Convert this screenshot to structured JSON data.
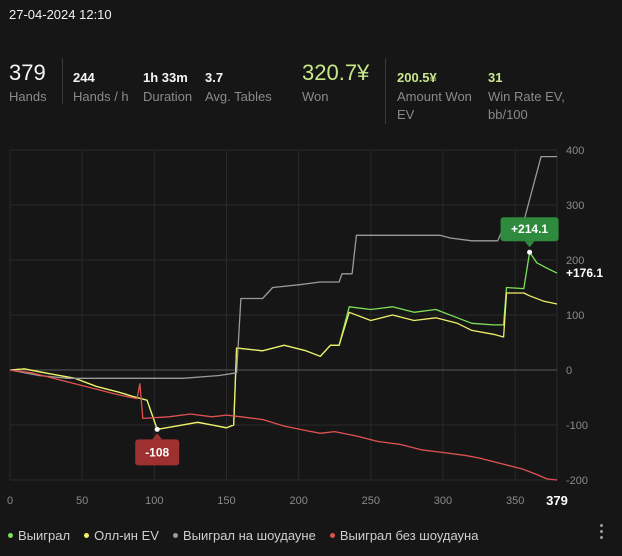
{
  "session": {
    "date": "27-04-2024 12:10"
  },
  "stats": {
    "hands": {
      "value": "379",
      "label": "Hands"
    },
    "hands_per_hour": {
      "value": "244",
      "label": "Hands / h"
    },
    "duration": {
      "value": "1h 33m",
      "label": "Duration"
    },
    "avg_tables": {
      "value": "3.7",
      "label": "Avg. Tables"
    },
    "won": {
      "value": "320.7¥",
      "label": "Won"
    },
    "amount_won_ev": {
      "value": "200.5¥",
      "label_line1": "Amount Won",
      "label_line2": "EV"
    },
    "win_rate_ev": {
      "value": "31",
      "label_line1": "Win Rate EV,",
      "label_line2": "bb/100"
    }
  },
  "colors": {
    "green": "#7ee05a",
    "yellow": "#f1ee6a",
    "gray": "#9a9a9a",
    "red": "#e05252",
    "badge_green": "#2e8b3e",
    "badge_red": "#9e3030"
  },
  "chart_data": {
    "type": "line",
    "x_ticks": [
      0,
      50,
      100,
      150,
      200,
      250,
      300,
      350
    ],
    "x_end_label": "379",
    "y_ticks": [
      400,
      300,
      200,
      100,
      0,
      -100,
      -200
    ],
    "xlim": [
      0,
      379
    ],
    "ylim": [
      -200,
      400
    ],
    "grid": true,
    "legend_position": "bottom-left",
    "annotations": [
      {
        "text": "+214.1",
        "x": 360,
        "y": 214.1,
        "kind": "max"
      },
      {
        "text": "-108",
        "x": 102,
        "y": -108,
        "kind": "min"
      },
      {
        "text": "+176.1",
        "x": 379,
        "y": 176.1,
        "kind": "end"
      }
    ],
    "series": [
      {
        "name": "Выиграл",
        "color_key": "green",
        "points": [
          [
            0,
            0
          ],
          [
            10,
            2
          ],
          [
            20,
            -3
          ],
          [
            30,
            -8
          ],
          [
            45,
            -15
          ],
          [
            60,
            -30
          ],
          [
            75,
            -40
          ],
          [
            85,
            -48
          ],
          [
            95,
            -55
          ],
          [
            102,
            -108
          ],
          [
            115,
            -102
          ],
          [
            130,
            -95
          ],
          [
            140,
            -100
          ],
          [
            150,
            -105
          ],
          [
            155,
            -100
          ],
          [
            157,
            40
          ],
          [
            175,
            35
          ],
          [
            190,
            45
          ],
          [
            205,
            35
          ],
          [
            215,
            25
          ],
          [
            222,
            45
          ],
          [
            228,
            45
          ],
          [
            235,
            115
          ],
          [
            250,
            110
          ],
          [
            265,
            115
          ],
          [
            280,
            105
          ],
          [
            295,
            110
          ],
          [
            310,
            95
          ],
          [
            320,
            85
          ],
          [
            335,
            82
          ],
          [
            342,
            82
          ],
          [
            344,
            150
          ],
          [
            356,
            148
          ],
          [
            360,
            214.1
          ],
          [
            365,
            195
          ],
          [
            372,
            185
          ],
          [
            379,
            176.1
          ]
        ]
      },
      {
        "name": "Олл-ин EV",
        "color_key": "yellow",
        "points": [
          [
            0,
            0
          ],
          [
            10,
            2
          ],
          [
            20,
            -3
          ],
          [
            30,
            -8
          ],
          [
            45,
            -15
          ],
          [
            60,
            -30
          ],
          [
            75,
            -40
          ],
          [
            85,
            -48
          ],
          [
            95,
            -55
          ],
          [
            102,
            -108
          ],
          [
            115,
            -102
          ],
          [
            130,
            -95
          ],
          [
            140,
            -100
          ],
          [
            150,
            -105
          ],
          [
            155,
            -100
          ],
          [
            157,
            40
          ],
          [
            175,
            35
          ],
          [
            190,
            45
          ],
          [
            205,
            35
          ],
          [
            215,
            25
          ],
          [
            222,
            45
          ],
          [
            228,
            45
          ],
          [
            235,
            105
          ],
          [
            250,
            90
          ],
          [
            265,
            100
          ],
          [
            280,
            90
          ],
          [
            295,
            95
          ],
          [
            310,
            85
          ],
          [
            320,
            72
          ],
          [
            335,
            65
          ],
          [
            342,
            60
          ],
          [
            344,
            140
          ],
          [
            356,
            140
          ],
          [
            360,
            135
          ],
          [
            370,
            125
          ],
          [
            379,
            120
          ]
        ]
      },
      {
        "name": "Выиграл на шоудауне",
        "color_key": "gray",
        "points": [
          [
            0,
            0
          ],
          [
            20,
            -10
          ],
          [
            40,
            -15
          ],
          [
            60,
            -15
          ],
          [
            80,
            -15
          ],
          [
            100,
            -15
          ],
          [
            120,
            -15
          ],
          [
            145,
            -10
          ],
          [
            157,
            -5
          ],
          [
            160,
            130
          ],
          [
            175,
            130
          ],
          [
            182,
            150
          ],
          [
            200,
            155
          ],
          [
            215,
            160
          ],
          [
            228,
            160
          ],
          [
            230,
            175
          ],
          [
            237,
            175
          ],
          [
            240,
            245
          ],
          [
            265,
            245
          ],
          [
            280,
            245
          ],
          [
            298,
            245
          ],
          [
            305,
            240
          ],
          [
            320,
            235
          ],
          [
            338,
            235
          ],
          [
            342,
            260
          ],
          [
            355,
            260
          ],
          [
            360,
            310
          ],
          [
            368,
            388
          ],
          [
            379,
            388
          ]
        ]
      },
      {
        "name": "Выиграл без шоудауна",
        "color_key": "red",
        "points": [
          [
            0,
            0
          ],
          [
            15,
            -5
          ],
          [
            30,
            -15
          ],
          [
            45,
            -25
          ],
          [
            60,
            -35
          ],
          [
            75,
            -45
          ],
          [
            88,
            -52
          ],
          [
            90,
            -25
          ],
          [
            92,
            -88
          ],
          [
            110,
            -85
          ],
          [
            125,
            -80
          ],
          [
            140,
            -85
          ],
          [
            150,
            -82
          ],
          [
            160,
            -85
          ],
          [
            175,
            -90
          ],
          [
            190,
            -102
          ],
          [
            205,
            -110
          ],
          [
            215,
            -115
          ],
          [
            225,
            -112
          ],
          [
            240,
            -120
          ],
          [
            255,
            -130
          ],
          [
            270,
            -135
          ],
          [
            285,
            -145
          ],
          [
            300,
            -150
          ],
          [
            315,
            -155
          ],
          [
            325,
            -160
          ],
          [
            340,
            -170
          ],
          [
            355,
            -180
          ],
          [
            365,
            -190
          ],
          [
            372,
            -198
          ],
          [
            379,
            -200
          ]
        ]
      }
    ]
  }
}
